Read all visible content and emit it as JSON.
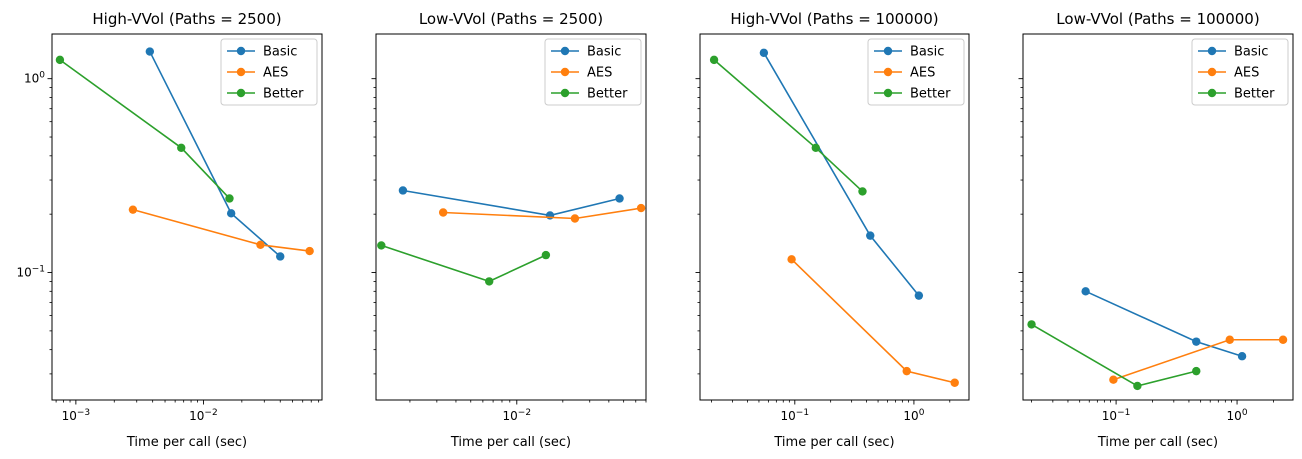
{
  "chart_data": [
    {
      "type": "line",
      "title": "High-VVol (Paths = 2500)",
      "xlabel": "Time per call (sec)",
      "ylabel": "",
      "xscale": "log",
      "yscale": "log",
      "xlim": [
        0.00065,
        0.085
      ],
      "ylim": [
        0.022,
        1.7
      ],
      "xticks": [
        {
          "value": 0.001,
          "base": "10",
          "exp": "−3"
        },
        {
          "value": 0.01,
          "base": "10",
          "exp": "−2"
        }
      ],
      "yticks": [
        {
          "value": 0.1,
          "base": "10",
          "exp": "−1"
        },
        {
          "value": 1,
          "base": "10",
          "exp": "0"
        }
      ],
      "legend": "top-right",
      "series": [
        {
          "name": "Basic",
          "color": "#1f77b4",
          "x": [
            0.0038,
            0.0165,
            0.04
          ],
          "y": [
            1.38,
            0.202,
            0.121
          ]
        },
        {
          "name": "AES",
          "color": "#ff7f0e",
          "x": [
            0.0028,
            0.028,
            0.068
          ],
          "y": [
            0.211,
            0.139,
            0.129
          ]
        },
        {
          "name": "Better",
          "color": "#2ca02c",
          "x": [
            0.00075,
            0.0067,
            0.016
          ],
          "y": [
            1.25,
            0.44,
            0.241
          ]
        }
      ]
    },
    {
      "type": "line",
      "title": "Low-VVol (Paths = 2500)",
      "xlabel": "Time per call (sec)",
      "ylabel": "",
      "xscale": "log",
      "yscale": "log",
      "xlim": [
        0.0012,
        0.07
      ],
      "ylim": [
        0.022,
        1.7
      ],
      "xticks": [
        {
          "value": 0.01,
          "base": "10",
          "exp": "−2"
        }
      ],
      "yticks": [],
      "legend": "top-right",
      "series": [
        {
          "name": "Basic",
          "color": "#1f77b4",
          "x": [
            0.0018,
            0.0165,
            0.047
          ],
          "y": [
            0.265,
            0.197,
            0.241
          ]
        },
        {
          "name": "AES",
          "color": "#ff7f0e",
          "x": [
            0.0033,
            0.024,
            0.065
          ],
          "y": [
            0.204,
            0.19,
            0.215
          ]
        },
        {
          "name": "Better",
          "color": "#2ca02c",
          "x": [
            0.0013,
            0.0066,
            0.0155
          ],
          "y": [
            0.138,
            0.09,
            0.123
          ]
        }
      ]
    },
    {
      "type": "line",
      "title": "High-VVol (Paths = 100000)",
      "xlabel": "Time per call (sec)",
      "ylabel": "",
      "xscale": "log",
      "yscale": "log",
      "xlim": [
        0.016,
        2.9
      ],
      "ylim": [
        0.022,
        1.7
      ],
      "xticks": [
        {
          "value": 0.1,
          "base": "10",
          "exp": "−1"
        },
        {
          "value": 1,
          "base": "10",
          "exp": "0"
        }
      ],
      "yticks": [],
      "legend": "top-right",
      "series": [
        {
          "name": "Basic",
          "color": "#1f77b4",
          "x": [
            0.055,
            0.43,
            1.1
          ],
          "y": [
            1.36,
            0.155,
            0.076
          ]
        },
        {
          "name": "AES",
          "color": "#ff7f0e",
          "x": [
            0.094,
            0.87,
            2.2
          ],
          "y": [
            0.117,
            0.031,
            0.027
          ]
        },
        {
          "name": "Better",
          "color": "#2ca02c",
          "x": [
            0.021,
            0.15,
            0.37
          ],
          "y": [
            1.25,
            0.44,
            0.262
          ]
        }
      ]
    },
    {
      "type": "line",
      "title": "Low-VVol (Paths = 100000)",
      "xlabel": "Time per call (sec)",
      "ylabel": "",
      "xscale": "log",
      "yscale": "log",
      "xlim": [
        0.017,
        2.9
      ],
      "ylim": [
        0.022,
        1.7
      ],
      "xticks": [
        {
          "value": 0.1,
          "base": "10",
          "exp": "−1"
        },
        {
          "value": 1,
          "base": "10",
          "exp": "0"
        }
      ],
      "yticks": [],
      "legend": "top-right",
      "series": [
        {
          "name": "Basic",
          "color": "#1f77b4",
          "x": [
            0.056,
            0.46,
            1.1
          ],
          "y": [
            0.08,
            0.044,
            0.037
          ]
        },
        {
          "name": "AES",
          "color": "#ff7f0e",
          "x": [
            0.095,
            0.87,
            2.4
          ],
          "y": [
            0.028,
            0.045,
            0.045
          ]
        },
        {
          "name": "Better",
          "color": "#2ca02c",
          "x": [
            0.02,
            0.15,
            0.46
          ],
          "y": [
            0.054,
            0.026,
            0.031
          ]
        }
      ]
    }
  ]
}
